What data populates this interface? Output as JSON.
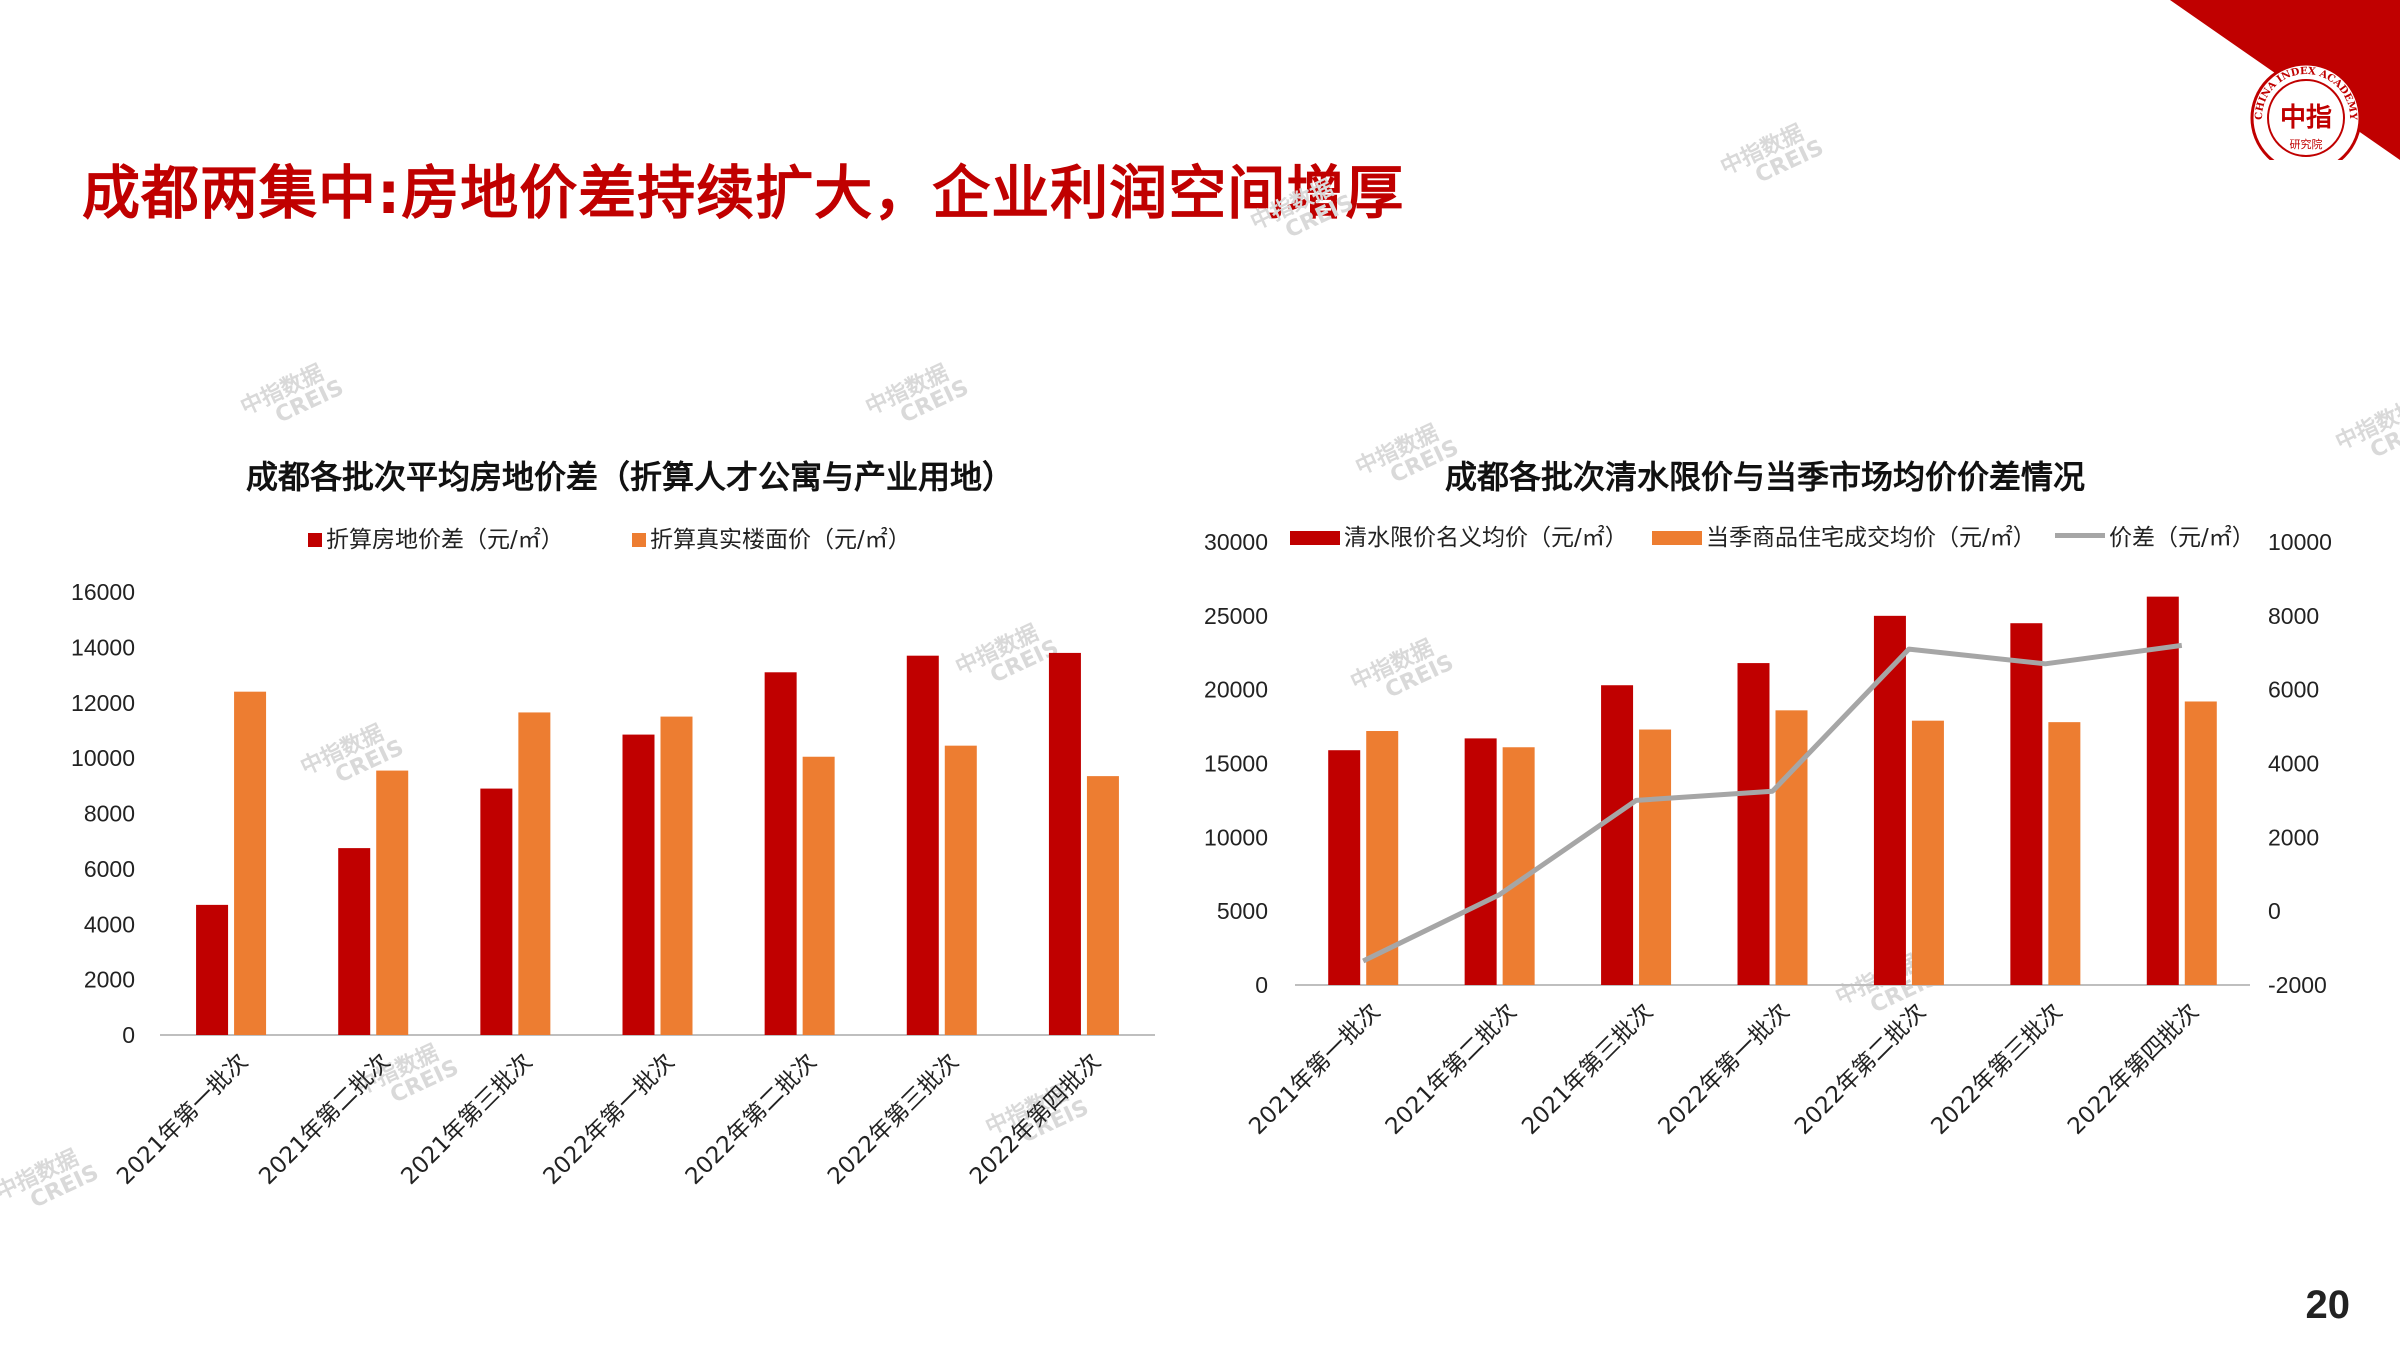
{
  "slide": {
    "title": "成都两集中:房地价差持续扩大，企业利润空间增厚",
    "page_number": "20"
  },
  "colors": {
    "accent": "#c00000",
    "bar_red": "#c00000",
    "bar_orange": "#ed7d31",
    "line_gray": "#a6a6a6"
  },
  "logo": {
    "text_ring": "CHINA INDEX ACADEMY",
    "center": "中指",
    "bottom": "研究院"
  },
  "watermark": {
    "cn": "中指数据",
    "en": "CREIS"
  },
  "chart_data": [
    {
      "type": "bar",
      "title": "成都各批次平均房地价差（折算人才公寓与产业用地）",
      "categories": [
        "2021年第一批次",
        "2021年第二批次",
        "2021年第三批次",
        "2022年第一批次",
        "2022年第二批次",
        "2022年第三批次",
        "2022年第四批次"
      ],
      "series": [
        {
          "name": "折算房地价差（元/㎡）",
          "color": "#c00000",
          "values": [
            4700,
            6750,
            8900,
            10850,
            13100,
            13700,
            13800
          ]
        },
        {
          "name": "折算真实楼面价（元/㎡）",
          "color": "#ed7d31",
          "values": [
            12400,
            9550,
            11650,
            11500,
            10050,
            10450,
            9350
          ]
        }
      ],
      "ylim": [
        0,
        16000
      ],
      "yticks": [
        "0",
        "2000",
        "4000",
        "6000",
        "8000",
        "10000",
        "12000",
        "14000",
        "16000"
      ],
      "legend": "top",
      "grid": false
    },
    {
      "type": "bar",
      "title": "成都各批次清水限价与当季市场均价价差情况",
      "categories": [
        "2021年第一批次",
        "2021年第二批次",
        "2021年第三批次",
        "2022年第一批次",
        "2022年第二批次",
        "2022年第三批次",
        "2022年第四批次"
      ],
      "series": [
        {
          "name": "清水限价名义均价（元/㎡）",
          "color": "#c00000",
          "values": [
            15900,
            16700,
            20300,
            21800,
            25000,
            24500,
            26300
          ]
        },
        {
          "name": "当季商品住宅成交均价（元/㎡）",
          "color": "#ed7d31",
          "values": [
            17200,
            16100,
            17300,
            18600,
            17900,
            17800,
            19200
          ]
        },
        {
          "name": "价差（元/㎡）",
          "type": "line",
          "axis": "right",
          "color": "#a6a6a6",
          "values": [
            -1350,
            450,
            3000,
            3250,
            7100,
            6700,
            7200
          ]
        }
      ],
      "ylim": [
        0,
        30000
      ],
      "yticks": [
        "0",
        "5000",
        "10000",
        "15000",
        "20000",
        "25000",
        "30000"
      ],
      "y2lim": [
        -2000,
        10000
      ],
      "y2ticks": [
        "-2000",
        "0",
        "2000",
        "4000",
        "6000",
        "8000",
        "10000"
      ],
      "legend": "top",
      "grid": false
    }
  ]
}
